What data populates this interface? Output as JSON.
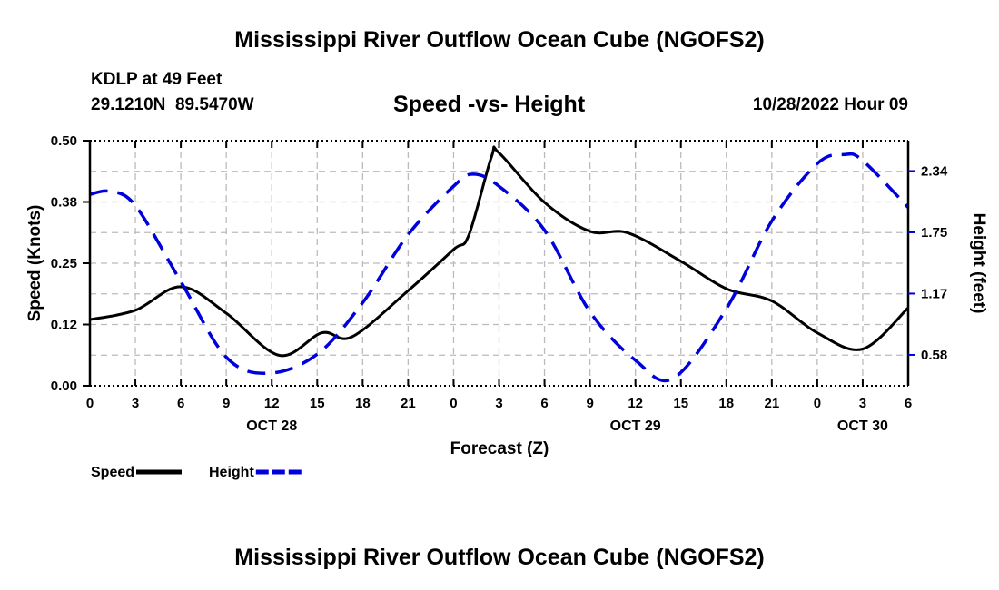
{
  "title": "Mississippi River Outflow Ocean Cube (NGOFS2)",
  "station": "KDLP at 49 Feet",
  "coords": "29.1210N  89.5470W",
  "subtitle": "Speed -vs- Height",
  "timestamp": "10/28/2022 Hour 09",
  "footer_title": "Mississippi River Outflow Ocean Cube (NGOFS2)",
  "chart_data": {
    "type": "line",
    "title": "Speed -vs- Height",
    "xlabel": "Forecast (Z)",
    "ylabel": "Speed (Knots)",
    "y2label": "Height (feet)",
    "x_unit": "hours since OCT 28 00Z",
    "xlim": [
      0,
      54
    ],
    "ylim": [
      0,
      0.5
    ],
    "y2lim": [
      0.29,
      2.63
    ],
    "x_ticks": [
      0,
      3,
      6,
      9,
      12,
      15,
      18,
      21,
      24,
      27,
      30,
      33,
      36,
      39,
      42,
      45,
      48,
      51,
      54
    ],
    "x_tick_labels": [
      "0",
      "3",
      "6",
      "9",
      "12",
      "15",
      "18",
      "21",
      "0",
      "3",
      "6",
      "9",
      "12",
      "15",
      "18",
      "21",
      "0",
      "3",
      "6"
    ],
    "date_labels": [
      {
        "x": 12,
        "label": "OCT 28"
      },
      {
        "x": 36,
        "label": "OCT 29"
      },
      {
        "x": 51,
        "label": "OCT 30"
      }
    ],
    "y_ticks": [
      0,
      0.125,
      0.25,
      0.375,
      0.5
    ],
    "y_tick_labels": [
      "0.00",
      "0.12",
      "0.25",
      "0.38",
      "0.50"
    ],
    "y2_ticks": [
      0.585,
      1.17,
      1.755,
      2.34
    ],
    "y2_tick_labels": [
      "0.58",
      "1.17",
      "1.75",
      "2.34"
    ],
    "grid": true,
    "legend": "bottom-left",
    "series": [
      {
        "name": "Speed",
        "axis": "left",
        "color": "#000000",
        "style": "solid",
        "x": [
          0,
          3,
          6,
          9,
          12.5,
          15.3,
          17.3,
          21,
          24,
          25,
          26.5,
          27,
          30,
          33,
          35.5,
          39,
          42,
          45,
          48,
          51,
          54
        ],
        "y": [
          0.135,
          0.154,
          0.202,
          0.148,
          0.062,
          0.108,
          0.1,
          0.194,
          0.278,
          0.307,
          0.467,
          0.475,
          0.374,
          0.315,
          0.312,
          0.254,
          0.198,
          0.173,
          0.108,
          0.075,
          0.159
        ]
      },
      {
        "name": "Height",
        "axis": "right",
        "color": "#0000DD",
        "style": "dashed",
        "x": [
          0,
          1.3,
          3,
          6,
          9,
          11.8,
          15,
          18,
          21,
          24,
          25.3,
          27,
          30,
          33,
          36,
          38.5,
          42,
          45,
          48,
          49.8,
          51,
          54
        ],
        "y": [
          2.117,
          2.146,
          2.01,
          1.285,
          0.563,
          0.41,
          0.591,
          1.083,
          1.733,
          2.195,
          2.31,
          2.195,
          1.776,
          0.996,
          0.534,
          0.361,
          1.025,
          1.863,
          2.411,
          2.498,
          2.44,
          1.993
        ]
      }
    ]
  }
}
